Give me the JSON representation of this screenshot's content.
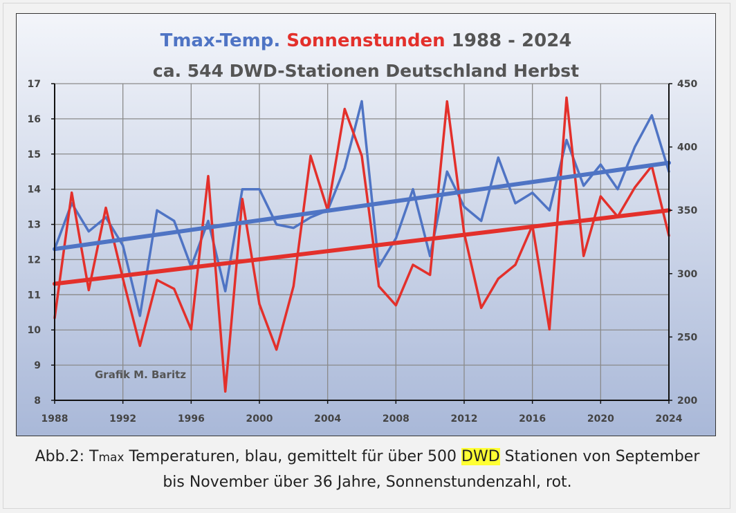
{
  "chart_data": {
    "type": "line",
    "title_parts": {
      "blue": "Tmax-Temp.",
      "red": "Sonnenstunden",
      "range": "1988 - 2024"
    },
    "subtitle": "ca. 544 DWD-Stationen Deutschland Herbst",
    "annotation": "Grafik M. Baritz",
    "x_ticks": [
      "1988",
      "1992",
      "1996",
      "2000",
      "2004",
      "2008",
      "2012",
      "2016",
      "2020",
      "2024"
    ],
    "xlim": [
      1988,
      2024
    ],
    "y_left": {
      "ylim": [
        8,
        17
      ],
      "ticks": [
        "8",
        "9",
        "10",
        "11",
        "12",
        "13",
        "14",
        "15",
        "16",
        "17"
      ]
    },
    "y_right": {
      "ylim": [
        200,
        450
      ],
      "ticks": [
        "200",
        "250",
        "300",
        "350",
        "400",
        "450"
      ]
    },
    "x": [
      1988,
      1989,
      1990,
      1991,
      1992,
      1993,
      1994,
      1995,
      1996,
      1997,
      1998,
      1999,
      2000,
      2001,
      2002,
      2003,
      2004,
      2005,
      2006,
      2007,
      2008,
      2009,
      2010,
      2011,
      2012,
      2013,
      2014,
      2015,
      2016,
      2017,
      2018,
      2019,
      2020,
      2021,
      2022,
      2023,
      2024
    ],
    "series": [
      {
        "name": "Tmax-Temp.",
        "axis": "left",
        "color": "#4f74c4",
        "values": [
          12.3,
          13.6,
          12.8,
          13.2,
          12.4,
          10.4,
          13.4,
          13.1,
          11.8,
          13.1,
          11.1,
          14.0,
          14.0,
          13.0,
          12.9,
          13.2,
          13.4,
          14.6,
          16.5,
          11.8,
          12.6,
          14.0,
          12.1,
          14.5,
          13.5,
          13.1,
          14.9,
          13.6,
          13.9,
          13.4,
          15.4,
          14.1,
          14.7,
          14.0,
          15.2,
          16.1,
          14.5
        ]
      },
      {
        "name": "Sonnenstunden",
        "axis": "right",
        "color": "#e3302b",
        "values": [
          265,
          364,
          287,
          352,
          296,
          243,
          295,
          288,
          256,
          377,
          207,
          359,
          276,
          240,
          290,
          393,
          350,
          430,
          393,
          290,
          275,
          307,
          299,
          436,
          332,
          273,
          296,
          307,
          338,
          256,
          439,
          314,
          361,
          345,
          368,
          385,
          330
        ]
      },
      {
        "name": "Trend Tmax",
        "axis": "left",
        "color": "#4f74c4",
        "values": [
          12.3,
          14.75
        ],
        "x": [
          1988,
          2024
        ]
      },
      {
        "name": "Trend Sonnenstunden",
        "axis": "right",
        "color": "#e3302b",
        "values": [
          292,
          350
        ],
        "x": [
          1988,
          2024
        ]
      }
    ]
  },
  "caption": {
    "prefix": "Abb.2: T",
    "small": "max",
    "part1": " Temperaturen, blau, gemittelt für über 500 ",
    "highlight": "DWD",
    "part2": " Stationen von September",
    "line2": "bis November über 36 Jahre, Sonnenstundenzahl, rot."
  }
}
